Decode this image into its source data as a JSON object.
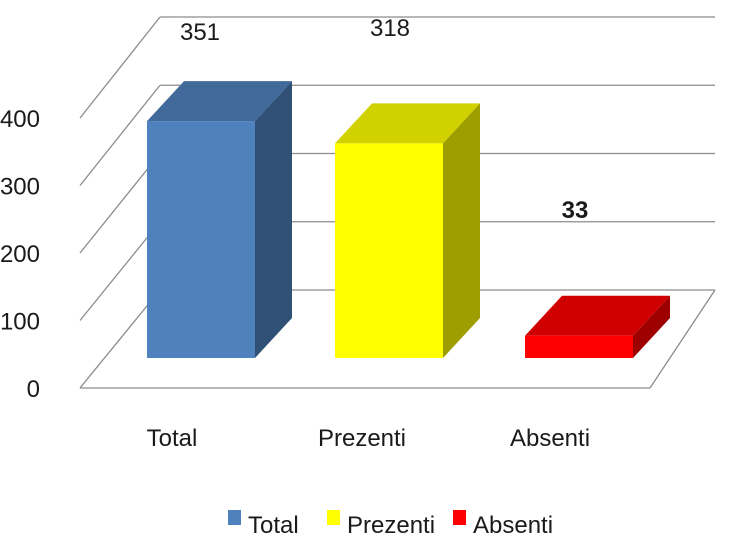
{
  "chart_data": {
    "type": "bar",
    "style": "3d-column",
    "title": "",
    "xlabel": "",
    "ylabel": "",
    "ylim": [
      0,
      400
    ],
    "yticks": [
      "0",
      "100",
      "200",
      "300",
      "400"
    ],
    "categories": [
      "Total",
      "Prezenti",
      "Absenti"
    ],
    "values": [
      351,
      318,
      33
    ],
    "data_labels": [
      "351",
      "318",
      "33"
    ],
    "colors": [
      "#4F81BD",
      "#FFFF00",
      "#FF0000"
    ],
    "grid": true,
    "legend": {
      "position": "bottom",
      "entries": [
        "Total",
        "Prezenti",
        "Absenti"
      ]
    }
  }
}
